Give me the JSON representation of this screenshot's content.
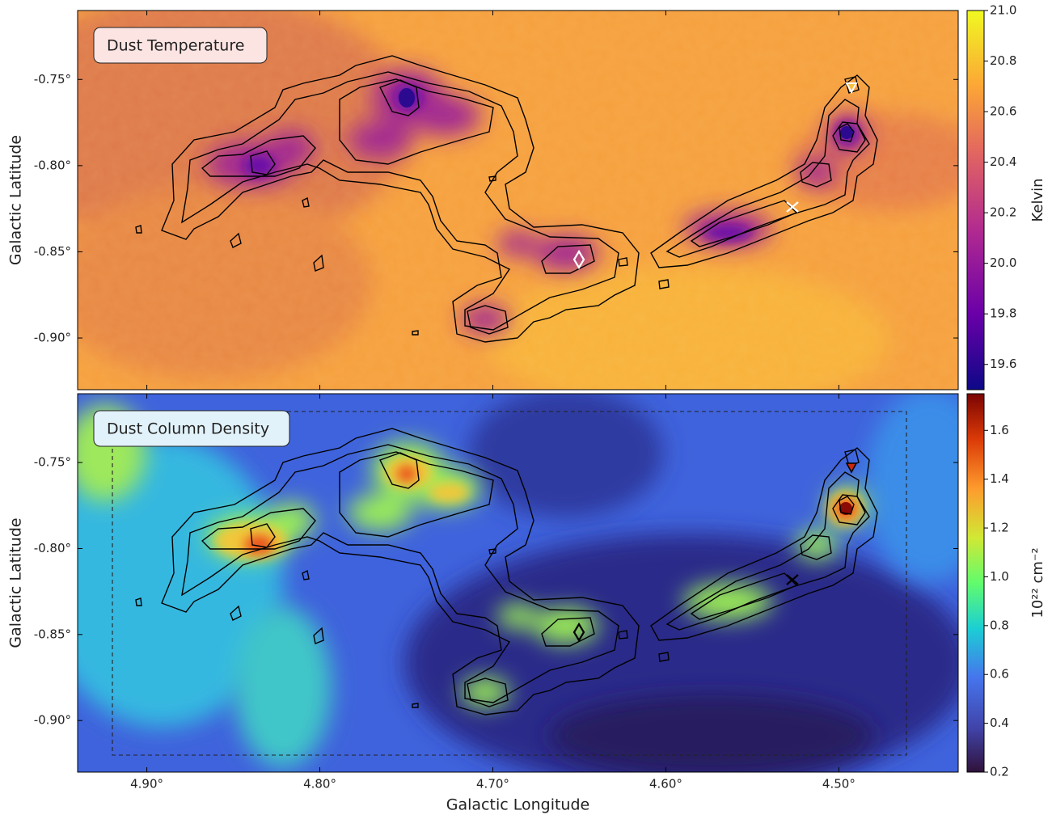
{
  "chart_data": [
    {
      "type": "image",
      "title": "Dust Temperature",
      "ylabel": "Galactic Latitude",
      "xlim": [
        4.94,
        4.431
      ],
      "ylim": [
        -0.93,
        -0.71
      ],
      "yticks": [
        {
          "value": -0.75,
          "label": "-0.75°"
        },
        {
          "value": -0.8,
          "label": "-0.80°"
        },
        {
          "value": -0.85,
          "label": "-0.85°"
        },
        {
          "value": -0.9,
          "label": "-0.90°"
        }
      ],
      "colorbar": {
        "label": "Kelvin",
        "lim": [
          19.5,
          21.0
        ],
        "ticks": [
          19.6,
          19.8,
          {
            "value": 20.0,
            "label": "20.0"
          },
          20.2,
          20.4,
          20.6,
          20.8,
          {
            "value": 21.0,
            "label": "21.0"
          }
        ]
      }
    },
    {
      "type": "image",
      "title": "Dust Column Density",
      "ylabel": "Galactic Latitude",
      "xlabel": "Galactic Longitude",
      "xlim": [
        4.94,
        4.431
      ],
      "ylim": [
        -0.93,
        -0.71
      ],
      "xticks": [
        {
          "value": 4.9,
          "label": "4.90°"
        },
        {
          "value": 4.8,
          "label": "4.80°"
        },
        {
          "value": 4.7,
          "label": "4.70°"
        },
        {
          "value": 4.6,
          "label": "4.60°"
        },
        {
          "value": 4.5,
          "label": "4.50°"
        }
      ],
      "yticks": [
        {
          "value": -0.75,
          "label": "-0.75°"
        },
        {
          "value": -0.8,
          "label": "-0.80°"
        },
        {
          "value": -0.85,
          "label": "-0.85°"
        },
        {
          "value": -0.9,
          "label": "-0.90°"
        }
      ],
      "colorbar": {
        "label": "10²² cm⁻²",
        "lim": [
          0.2,
          1.75
        ],
        "ticks": [
          0.2,
          0.4,
          0.6,
          0.8,
          {
            "value": 1.0,
            "label": "1.0"
          },
          1.2,
          1.4,
          1.6
        ]
      }
    }
  ]
}
